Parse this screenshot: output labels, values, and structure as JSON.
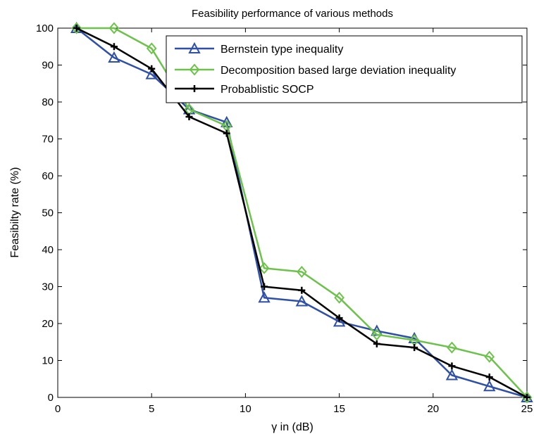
{
  "chart_data": {
    "type": "line",
    "title": "Feasibility performance of various methods",
    "xlabel": "γ in (dB)",
    "ylabel": "Feasibilty rate (%)",
    "xlim": [
      0,
      25
    ],
    "ylim": [
      0,
      100
    ],
    "xticks": [
      0,
      5,
      10,
      15,
      20,
      25
    ],
    "yticks": [
      0,
      10,
      20,
      30,
      40,
      50,
      60,
      70,
      80,
      90,
      100
    ],
    "grid": false,
    "legend_position": "top-right",
    "x": [
      1,
      3,
      5,
      7,
      9,
      11,
      13,
      15,
      17,
      19,
      21,
      23,
      25
    ],
    "series": [
      {
        "name": "Bernstein type inequality",
        "color": "#2f4fa8",
        "marker": "triangle",
        "values": [
          100,
          92,
          87.5,
          78,
          74.5,
          27,
          26,
          20.5,
          18,
          16,
          6,
          3,
          0
        ]
      },
      {
        "name": "Decomposition based large deviation inequality",
        "color": "#6cc24a",
        "marker": "diamond",
        "values": [
          100,
          100,
          94.5,
          78,
          73.5,
          35,
          34,
          27,
          17,
          15.5,
          13.5,
          11,
          0
        ]
      },
      {
        "name": "Probablistic SOCP",
        "color": "#000000",
        "marker": "plus",
        "values": [
          100,
          95,
          89,
          76,
          71.5,
          30,
          29,
          21.5,
          14.5,
          13.5,
          8.5,
          5.5,
          0
        ]
      }
    ]
  }
}
